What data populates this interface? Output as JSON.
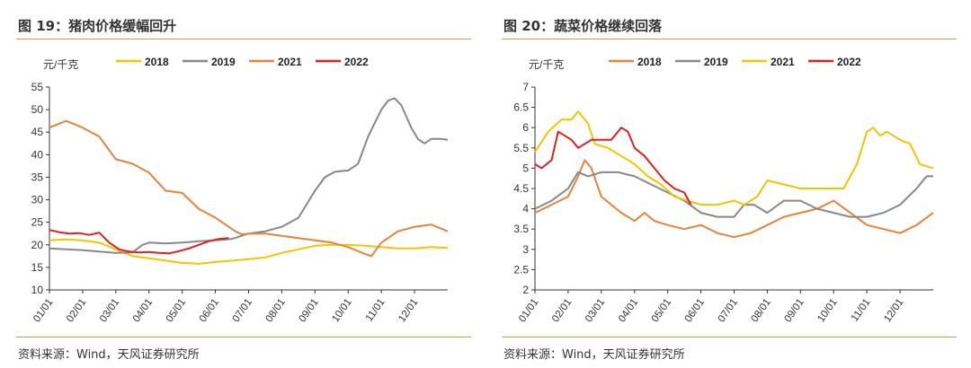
{
  "charts": [
    {
      "title": "图 19：猪肉价格缓幅回升",
      "source": "资料来源：Wind，天风证券研究所"
    },
    {
      "title": "图 20：蔬菜价格继续回落",
      "source": "资料来源：Wind，天风证券研究所"
    }
  ],
  "chart_data": [
    {
      "type": "line",
      "unit_label": "元/千克",
      "ylim": [
        10,
        55
      ],
      "yticks": [
        10,
        15,
        20,
        25,
        30,
        35,
        40,
        45,
        50,
        55
      ],
      "xticks": [
        "01/01",
        "02/01",
        "03/01",
        "04/01",
        "05/01",
        "06/01",
        "07/01",
        "08/01",
        "09/01",
        "10/01",
        "11/01",
        "12/01"
      ],
      "xlim": [
        0,
        12
      ],
      "legend_position": "top",
      "series": [
        {
          "name": "2018",
          "color": "#f5c400",
          "points": [
            [
              0,
              21
            ],
            [
              0.5,
              21.2
            ],
            [
              1,
              21
            ],
            [
              1.5,
              20.5
            ],
            [
              2,
              19
            ],
            [
              2.5,
              17.5
            ],
            [
              3,
              17
            ],
            [
              3.5,
              16.5
            ],
            [
              4,
              16
            ],
            [
              4.5,
              15.8
            ],
            [
              5,
              16.2
            ],
            [
              5.5,
              16.5
            ],
            [
              6,
              16.8
            ],
            [
              6.5,
              17.2
            ],
            [
              7,
              18.2
            ],
            [
              7.5,
              19
            ],
            [
              8,
              19.8
            ],
            [
              8.5,
              20
            ],
            [
              9,
              20
            ],
            [
              9.5,
              19.8
            ],
            [
              10,
              19.5
            ],
            [
              10.5,
              19.2
            ],
            [
              11,
              19.2
            ],
            [
              11.5,
              19.5
            ],
            [
              12,
              19.3
            ]
          ]
        },
        {
          "name": "2019",
          "color": "#888888",
          "points": [
            [
              0,
              19.2
            ],
            [
              0.5,
              19
            ],
            [
              1,
              18.8
            ],
            [
              1.5,
              18.5
            ],
            [
              2,
              18.2
            ],
            [
              2.5,
              18.3
            ],
            [
              2.8,
              20
            ],
            [
              3,
              20.5
            ],
            [
              3.5,
              20.3
            ],
            [
              4,
              20.5
            ],
            [
              4.5,
              20.8
            ],
            [
              5,
              21
            ],
            [
              5.5,
              21.3
            ],
            [
              6,
              22.5
            ],
            [
              6.5,
              23
            ],
            [
              7,
              24
            ],
            [
              7.5,
              26
            ],
            [
              8,
              32
            ],
            [
              8.3,
              35
            ],
            [
              8.6,
              36.2
            ],
            [
              9,
              36.5
            ],
            [
              9.3,
              38
            ],
            [
              9.6,
              44
            ],
            [
              10,
              50
            ],
            [
              10.2,
              52
            ],
            [
              10.4,
              52.5
            ],
            [
              10.6,
              51
            ],
            [
              10.9,
              46
            ],
            [
              11.1,
              43.5
            ],
            [
              11.3,
              42.5
            ],
            [
              11.5,
              43.5
            ],
            [
              11.8,
              43.5
            ],
            [
              12,
              43.3
            ]
          ]
        },
        {
          "name": "2021",
          "color": "#e8823a",
          "points": [
            [
              0,
              46
            ],
            [
              0.5,
              47.5
            ],
            [
              1,
              46
            ],
            [
              1.5,
              44
            ],
            [
              2,
              39
            ],
            [
              2.5,
              38
            ],
            [
              3,
              36
            ],
            [
              3.5,
              32
            ],
            [
              4,
              31.5
            ],
            [
              4.5,
              28
            ],
            [
              5,
              26
            ],
            [
              5.3,
              24.5
            ],
            [
              5.6,
              23
            ],
            [
              5.8,
              22.3
            ],
            [
              6,
              22.5
            ],
            [
              6.5,
              22.5
            ],
            [
              7,
              22
            ],
            [
              7.5,
              21.5
            ],
            [
              8,
              21
            ],
            [
              8.5,
              20.5
            ],
            [
              9,
              19.5
            ],
            [
              9.5,
              18
            ],
            [
              9.7,
              17.5
            ],
            [
              10,
              20.5
            ],
            [
              10.5,
              23
            ],
            [
              11,
              24
            ],
            [
              11.5,
              24.5
            ],
            [
              12,
              23
            ]
          ]
        },
        {
          "name": "2022",
          "color": "#e01e1e",
          "points": [
            [
              0,
              23.3
            ],
            [
              0.3,
              22.8
            ],
            [
              0.6,
              22.5
            ],
            [
              0.9,
              22.6
            ],
            [
              1.2,
              22.2
            ],
            [
              1.5,
              22.7
            ],
            [
              1.8,
              20.5
            ],
            [
              2.1,
              19
            ],
            [
              2.4,
              18.5
            ],
            [
              2.7,
              18.3
            ],
            [
              3,
              18.4
            ],
            [
              3.3,
              18.2
            ],
            [
              3.6,
              18.1
            ],
            [
              3.9,
              18.6
            ],
            [
              4.2,
              19.2
            ],
            [
              4.5,
              20
            ],
            [
              4.8,
              20.8
            ],
            [
              5.1,
              21.3
            ],
            [
              5.4,
              21.5
            ]
          ]
        }
      ]
    },
    {
      "type": "line",
      "unit_label": "元/千克",
      "ylim": [
        2,
        7
      ],
      "yticks": [
        2,
        2.5,
        3,
        3.5,
        4,
        4.5,
        5,
        5.5,
        6,
        6.5,
        7
      ],
      "xticks": [
        "01/01",
        "02/01",
        "03/01",
        "04/01",
        "05/01",
        "06/01",
        "07/01",
        "08/01",
        "09/01",
        "10/01",
        "11/01",
        "12/01"
      ],
      "xlim": [
        0,
        12
      ],
      "legend_position": "top",
      "series": [
        {
          "name": "2018",
          "color": "#e8823a",
          "points": [
            [
              0,
              3.9
            ],
            [
              0.5,
              4.1
            ],
            [
              1,
              4.3
            ],
            [
              1.3,
              4.8
            ],
            [
              1.5,
              5.2
            ],
            [
              1.7,
              5
            ],
            [
              2,
              4.3
            ],
            [
              2.3,
              4.1
            ],
            [
              2.6,
              3.9
            ],
            [
              3,
              3.7
            ],
            [
              3.3,
              3.9
            ],
            [
              3.6,
              3.7
            ],
            [
              4,
              3.6
            ],
            [
              4.5,
              3.5
            ],
            [
              5,
              3.6
            ],
            [
              5.5,
              3.4
            ],
            [
              6,
              3.3
            ],
            [
              6.5,
              3.4
            ],
            [
              7,
              3.6
            ],
            [
              7.5,
              3.8
            ],
            [
              8,
              3.9
            ],
            [
              8.5,
              4
            ],
            [
              9,
              4.2
            ],
            [
              9.5,
              3.9
            ],
            [
              10,
              3.6
            ],
            [
              10.5,
              3.5
            ],
            [
              11,
              3.4
            ],
            [
              11.5,
              3.6
            ],
            [
              12,
              3.9
            ]
          ]
        },
        {
          "name": "2019",
          "color": "#888888",
          "points": [
            [
              0,
              4
            ],
            [
              0.5,
              4.2
            ],
            [
              1,
              4.5
            ],
            [
              1.3,
              4.9
            ],
            [
              1.6,
              4.8
            ],
            [
              2,
              4.9
            ],
            [
              2.5,
              4.9
            ],
            [
              3,
              4.8
            ],
            [
              3.5,
              4.6
            ],
            [
              4,
              4.4
            ],
            [
              4.5,
              4.2
            ],
            [
              5,
              3.9
            ],
            [
              5.5,
              3.8
            ],
            [
              6,
              3.8
            ],
            [
              6.3,
              4.1
            ],
            [
              6.6,
              4.1
            ],
            [
              7,
              3.9
            ],
            [
              7.5,
              4.2
            ],
            [
              8,
              4.2
            ],
            [
              8.5,
              4
            ],
            [
              9,
              3.9
            ],
            [
              9.5,
              3.8
            ],
            [
              10,
              3.8
            ],
            [
              10.5,
              3.9
            ],
            [
              11,
              4.1
            ],
            [
              11.5,
              4.5
            ],
            [
              11.8,
              4.8
            ],
            [
              12,
              4.8
            ]
          ]
        },
        {
          "name": "2021",
          "color": "#f5c400",
          "points": [
            [
              0,
              5.4
            ],
            [
              0.4,
              5.9
            ],
            [
              0.8,
              6.2
            ],
            [
              1.1,
              6.2
            ],
            [
              1.3,
              6.4
            ],
            [
              1.6,
              6.1
            ],
            [
              1.8,
              5.6
            ],
            [
              2.2,
              5.5
            ],
            [
              2.6,
              5.3
            ],
            [
              3,
              5.1
            ],
            [
              3.4,
              4.8
            ],
            [
              3.8,
              4.6
            ],
            [
              4.2,
              4.3
            ],
            [
              4.6,
              4.2
            ],
            [
              5,
              4.1
            ],
            [
              5.5,
              4.1
            ],
            [
              6,
              4.2
            ],
            [
              6.3,
              4.1
            ],
            [
              6.7,
              4.3
            ],
            [
              7,
              4.7
            ],
            [
              7.5,
              4.6
            ],
            [
              8,
              4.5
            ],
            [
              8.5,
              4.5
            ],
            [
              9,
              4.5
            ],
            [
              9.3,
              4.5
            ],
            [
              9.7,
              5.1
            ],
            [
              10,
              5.9
            ],
            [
              10.2,
              6
            ],
            [
              10.4,
              5.8
            ],
            [
              10.6,
              5.9
            ],
            [
              11,
              5.7
            ],
            [
              11.3,
              5.6
            ],
            [
              11.6,
              5.1
            ],
            [
              12,
              5
            ]
          ]
        },
        {
          "name": "2022",
          "color": "#e01e1e",
          "points": [
            [
              0,
              5.1
            ],
            [
              0.2,
              5
            ],
            [
              0.5,
              5.2
            ],
            [
              0.7,
              5.9
            ],
            [
              0.9,
              5.8
            ],
            [
              1.1,
              5.7
            ],
            [
              1.3,
              5.5
            ],
            [
              1.5,
              5.6
            ],
            [
              1.7,
              5.7
            ],
            [
              2,
              5.7
            ],
            [
              2.3,
              5.7
            ],
            [
              2.6,
              6
            ],
            [
              2.8,
              5.9
            ],
            [
              3,
              5.5
            ],
            [
              3.3,
              5.3
            ],
            [
              3.6,
              5
            ],
            [
              3.9,
              4.7
            ],
            [
              4.2,
              4.5
            ],
            [
              4.5,
              4.4
            ],
            [
              4.7,
              4.1
            ]
          ]
        }
      ]
    }
  ]
}
